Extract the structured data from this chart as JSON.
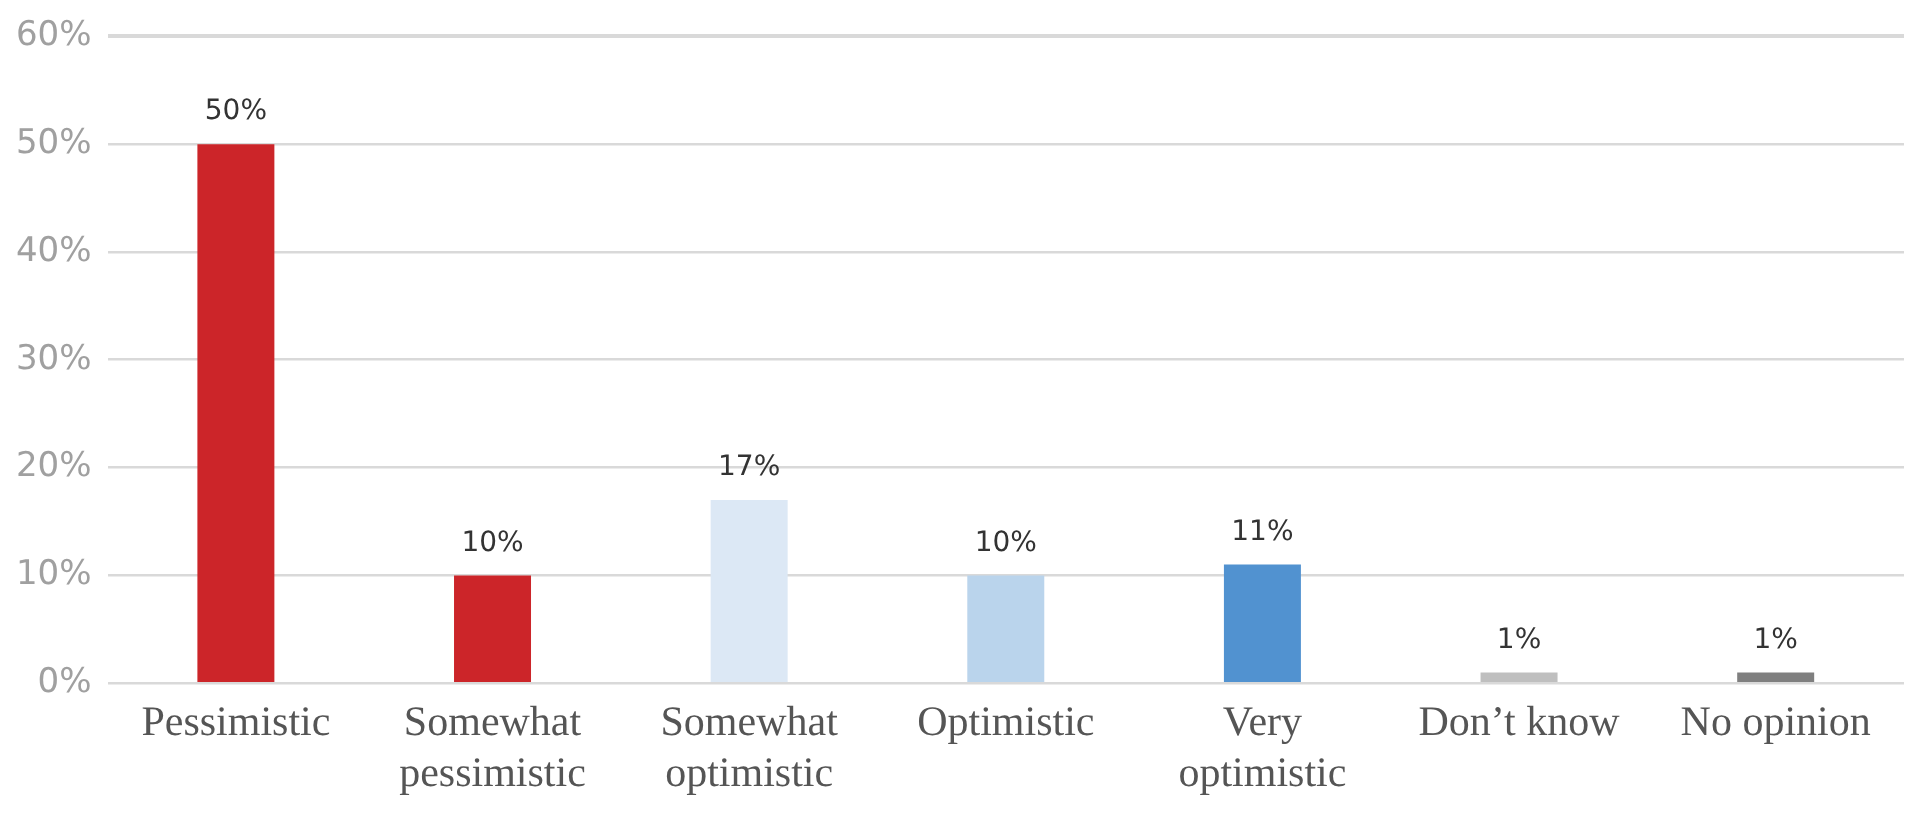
{
  "chart_data": {
    "type": "bar",
    "categories": [
      "Pessimistic",
      "Somewhat pessimistic",
      "Somewhat optimistic",
      "Optimistic",
      "Very optimistic",
      "Don’t know",
      "No opinion"
    ],
    "values": [
      50,
      10,
      17,
      10,
      11,
      1,
      1
    ],
    "colors": [
      "#cc2529",
      "#cc2529",
      "#dce8f5",
      "#bad4ec",
      "#5192d0",
      "#bfbfbf",
      "#7f7f7f"
    ],
    "value_labels": [
      "50%",
      "10%",
      "17%",
      "10%",
      "11%",
      "1%",
      "1%"
    ],
    "ylim": [
      0,
      60
    ],
    "yticks": [
      {
        "value": 0,
        "label": "0%"
      },
      {
        "value": 10,
        "label": "10%"
      },
      {
        "value": 20,
        "label": "20%"
      },
      {
        "value": 30,
        "label": "30%"
      },
      {
        "value": 40,
        "label": "40%"
      },
      {
        "value": 50,
        "label": "50%"
      },
      {
        "value": 60,
        "label": "60%"
      }
    ],
    "grid": "y",
    "legend": false
  }
}
